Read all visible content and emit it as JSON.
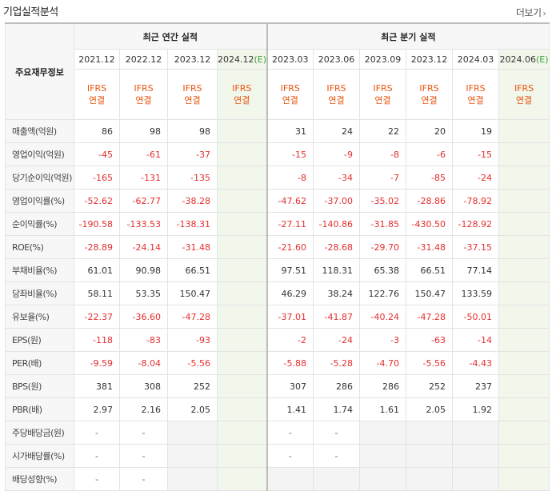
{
  "title": "기업실적분석",
  "more_label": "더보기",
  "row_header": "주요재무정보",
  "annual_header": "최근 연간 실적",
  "quarter_header": "최근 분기 실적",
  "periods": [
    "2021.12",
    "2022.12",
    "2023.12",
    "2024.12(E)",
    "2023.03",
    "2023.06",
    "2023.09",
    "2023.12",
    "2024.03",
    "2024.06(E)"
  ],
  "basis_line1": "IFRS",
  "basis_line2": "연결",
  "rows": [
    {
      "label": "매출액(억원)",
      "values": [
        "86",
        "98",
        "98",
        "",
        "31",
        "24",
        "22",
        "20",
        "19",
        ""
      ]
    },
    {
      "label": "영업이익(억원)",
      "values": [
        "-45",
        "-61",
        "-37",
        "",
        "-15",
        "-9",
        "-8",
        "-6",
        "-15",
        ""
      ]
    },
    {
      "label": "당기순이익(억원)",
      "values": [
        "-165",
        "-131",
        "-135",
        "",
        "-8",
        "-34",
        "-7",
        "-85",
        "-24",
        ""
      ]
    },
    {
      "label": "영업이익률(%)",
      "values": [
        "-52.62",
        "-62.77",
        "-38.28",
        "",
        "-47.62",
        "-37.00",
        "-35.02",
        "-28.86",
        "-78.92",
        ""
      ]
    },
    {
      "label": "순이익률(%)",
      "values": [
        "-190.58",
        "-133.53",
        "-138.31",
        "",
        "-27.11",
        "-140.86",
        "-31.85",
        "-430.50",
        "-128.92",
        ""
      ]
    },
    {
      "label": "ROE(%)",
      "values": [
        "-28.89",
        "-24.14",
        "-31.48",
        "",
        "-21.60",
        "-28.68",
        "-29.70",
        "-31.48",
        "-37.15",
        ""
      ]
    },
    {
      "label": "부채비율(%)",
      "values": [
        "61.01",
        "90.98",
        "66.51",
        "",
        "97.51",
        "118.31",
        "65.38",
        "66.51",
        "77.14",
        ""
      ]
    },
    {
      "label": "당좌비율(%)",
      "values": [
        "58.11",
        "53.35",
        "150.47",
        "",
        "46.29",
        "38.24",
        "122.76",
        "150.47",
        "133.59",
        ""
      ]
    },
    {
      "label": "유보율(%)",
      "values": [
        "-22.37",
        "-36.60",
        "-47.28",
        "",
        "-37.01",
        "-41.87",
        "-40.24",
        "-47.28",
        "-50.01",
        ""
      ]
    },
    {
      "label": "EPS(원)",
      "values": [
        "-118",
        "-83",
        "-93",
        "",
        "-2",
        "-24",
        "-3",
        "-63",
        "-14",
        ""
      ]
    },
    {
      "label": "PER(배)",
      "values": [
        "-9.59",
        "-8.04",
        "-5.56",
        "",
        "-5.88",
        "-5.28",
        "-4.70",
        "-5.56",
        "-4.43",
        ""
      ]
    },
    {
      "label": "BPS(원)",
      "values": [
        "381",
        "308",
        "252",
        "",
        "307",
        "286",
        "286",
        "252",
        "237",
        ""
      ]
    },
    {
      "label": "PBR(배)",
      "values": [
        "2.97",
        "2.16",
        "2.05",
        "",
        "1.41",
        "1.74",
        "1.61",
        "2.05",
        "1.92",
        ""
      ]
    },
    {
      "label": "주당배당금(원)",
      "values": [
        "-",
        "-",
        "",
        "",
        "-",
        "-",
        "",
        "",
        "",
        ""
      ]
    },
    {
      "label": "시가배당률(%)",
      "values": [
        "-",
        "-",
        "",
        "",
        "-",
        "-",
        "",
        "",
        "",
        ""
      ]
    },
    {
      "label": "배당성향(%)",
      "values": [
        "-",
        "-",
        "",
        "",
        "",
        "",
        "",
        "",
        "",
        ""
      ]
    }
  ]
}
